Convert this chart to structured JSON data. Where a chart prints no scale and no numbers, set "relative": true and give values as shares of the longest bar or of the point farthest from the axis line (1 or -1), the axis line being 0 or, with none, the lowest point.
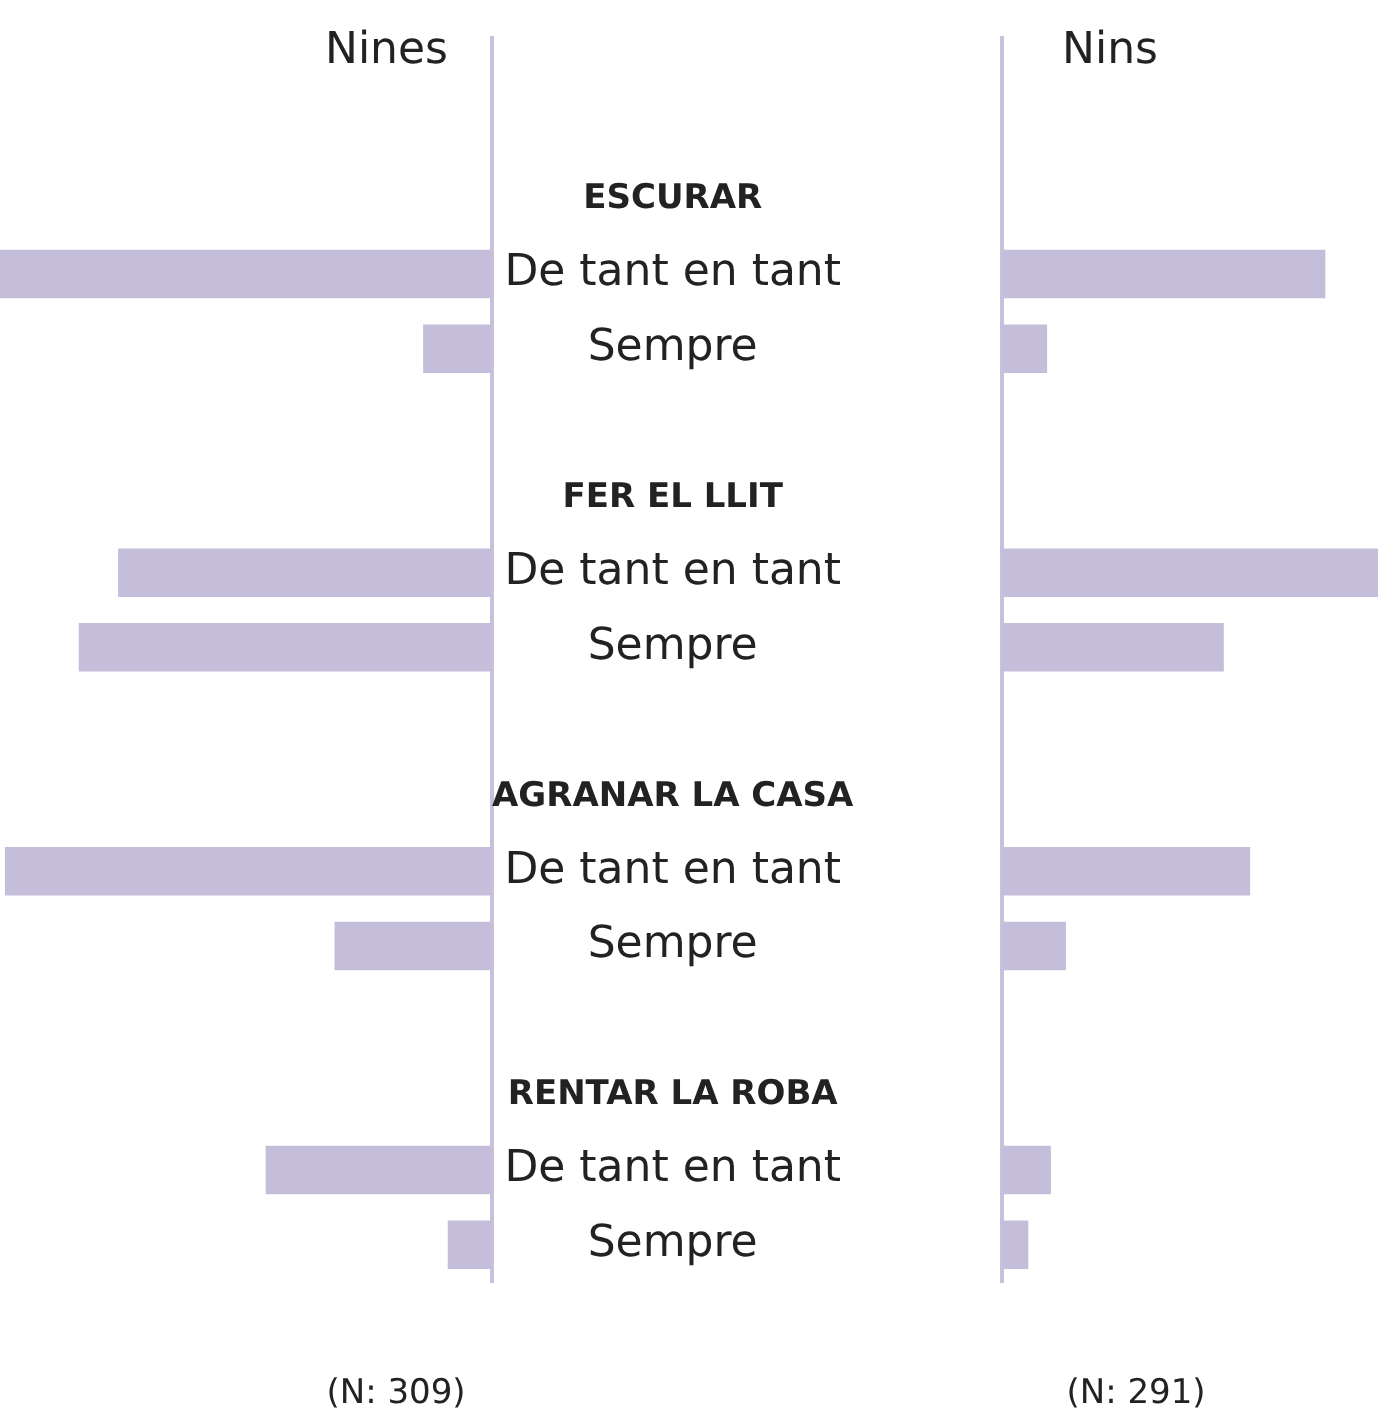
{
  "chart_data": [
    {
      "type": "bar",
      "orientation": "horizontal",
      "relative": true,
      "title": "Nines",
      "legend": false,
      "categories": [
        "ESCURAR",
        "De tant en tant",
        "Sempre",
        null,
        "FER EL LLIT",
        "De tant en tant",
        "Sempre",
        null,
        "AGRANAR LA CASA",
        "De tant en tant",
        "Sempre",
        null,
        "RENTAR LA ROBA",
        "De tant en tant",
        "Sempre"
      ],
      "values": [
        null,
        1,
        0.14,
        null,
        null,
        0.76,
        0.84,
        null,
        null,
        0.99,
        0.32,
        null,
        null,
        0.46,
        0.09
      ],
      "color": "#c5bedb",
      "annotations": [
        "(N: 309)"
      ]
    },
    {
      "type": "bar",
      "orientation": "horizontal",
      "relative": true,
      "title": "Nins",
      "legend": false,
      "categories": [
        null,
        null,
        null,
        null,
        null,
        null,
        null,
        null,
        null,
        null,
        null,
        null,
        null,
        null,
        null
      ],
      "values": [
        null,
        0.86,
        0.12,
        null,
        null,
        1,
        0.59,
        null,
        null,
        0.66,
        0.17,
        null,
        null,
        0.13,
        0.07
      ],
      "color": "#c5bedb",
      "annotations": [
        "(N: 291)"
      ]
    }
  ]
}
